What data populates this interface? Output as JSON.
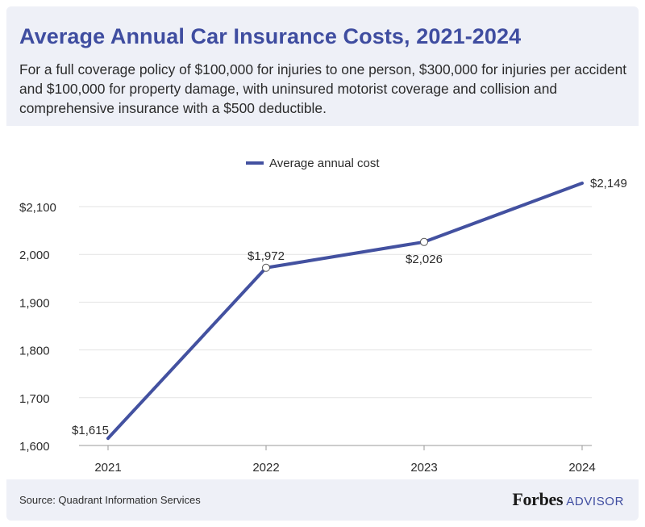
{
  "header": {
    "title": "Average Annual Car Insurance Costs, 2021-2024",
    "subtitle": "For a full coverage policy of $100,000 for injuries to one person, $300,000 for injuries per accident and $100,000 for property damage, with uninsured motorist coverage and collision and comprehensive insurance with a $500 deductible."
  },
  "footer": {
    "source": "Source: Quadrant Information Services",
    "brand_name": "Forbes",
    "brand_suffix": "ADVISOR"
  },
  "colors": {
    "accent": "#3f4da0",
    "line": "#4351a0",
    "background_panel": "#eef0f7",
    "grid": "#e3e3e3"
  },
  "chart_data": {
    "type": "line",
    "legend_position": "top-center",
    "grid": true,
    "x": [
      "2021",
      "2022",
      "2023",
      "2024"
    ],
    "ylim": [
      1600,
      2150
    ],
    "y_ticks": [
      {
        "value": 1600,
        "label": "1,600"
      },
      {
        "value": 1700,
        "label": "1,700"
      },
      {
        "value": 1800,
        "label": "1,800"
      },
      {
        "value": 1900,
        "label": "1,900"
      },
      {
        "value": 2000,
        "label": "2,000"
      },
      {
        "value": 2100,
        "label": "$2,100"
      }
    ],
    "series": [
      {
        "name": "Average annual cost",
        "values": [
          1615,
          1972,
          2026,
          2149
        ],
        "data_labels": [
          "$1,615",
          "$1,972",
          "$2,026",
          "$2,149"
        ]
      }
    ]
  }
}
